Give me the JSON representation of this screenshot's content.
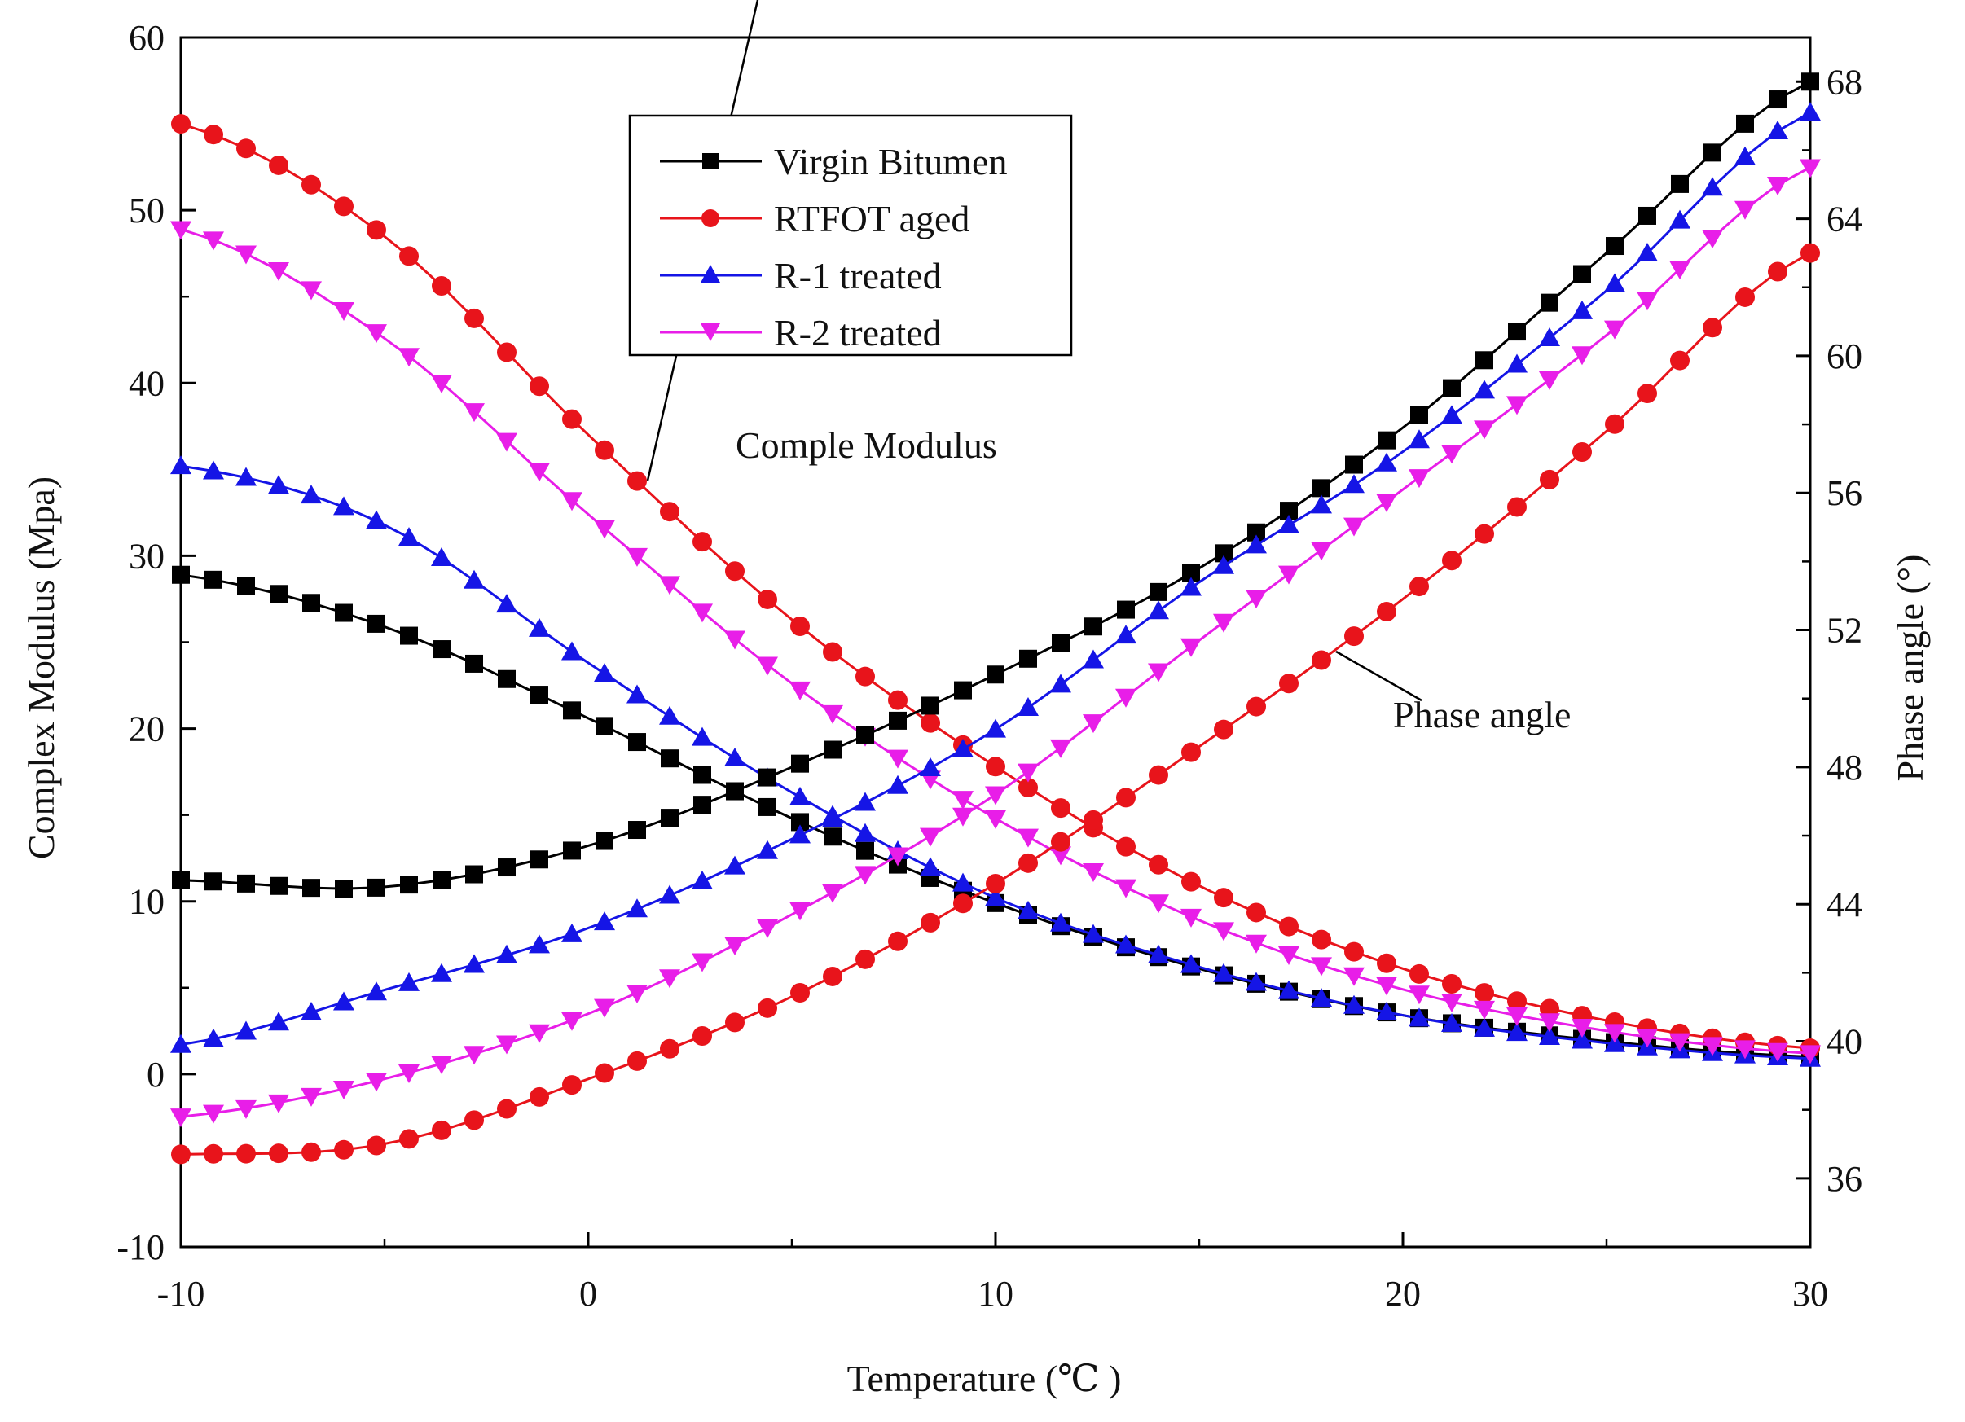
{
  "chart_data": {
    "type": "line",
    "xlabel": "Temperature (℃ )",
    "ylabel": "Complex Modulus (Mpa)",
    "y2label": "Phase angle (°)",
    "xlim": [
      -10,
      30
    ],
    "ylim": [
      -10,
      60
    ],
    "y2lim": [
      34,
      69.29
    ],
    "x_ticks": [
      "-10",
      "0",
      "10",
      "20",
      "30"
    ],
    "y_ticks": [
      "-10",
      "0",
      "10",
      "20",
      "30",
      "40",
      "50",
      "60"
    ],
    "y2_ticks": [
      "36",
      "40",
      "44",
      "48",
      "52",
      "56",
      "60",
      "64",
      "68"
    ],
    "legend_position": "top-center",
    "legend": [
      "Virgin Bitumen",
      "RTFOT aged",
      "R-1 treated",
      "R-2 treated"
    ],
    "annotations": [
      "Comple Modulus",
      "Phase angle"
    ],
    "modulus_series": [
      {
        "name": "Virgin Bitumen",
        "color": "#000000",
        "marker": "square",
        "x": [
          -10,
          -5,
          0,
          5,
          10,
          15,
          20,
          25,
          30
        ],
        "y": [
          28.9,
          25.9,
          20.6,
          14.8,
          9.9,
          6.1,
          3.4,
          1.9,
          1.0
        ]
      },
      {
        "name": "RTFOT aged",
        "color": "#e8141b",
        "marker": "circle",
        "x": [
          -10,
          -5,
          0,
          5,
          10,
          15,
          20,
          25,
          30
        ],
        "y": [
          55.0,
          48.5,
          37.0,
          26.3,
          17.8,
          10.9,
          6.1,
          3.1,
          1.5
        ]
      },
      {
        "name": "R-1 treated",
        "color": "#1515e6",
        "marker": "triangle-up",
        "x": [
          -10,
          -5,
          0,
          5,
          10,
          15,
          20,
          25,
          30
        ],
        "y": [
          35.2,
          31.8,
          23.8,
          16.3,
          10.2,
          6.2,
          3.4,
          1.8,
          0.9
        ]
      },
      {
        "name": "R-2 treated",
        "color": "#e81ee8",
        "marker": "triangle-down",
        "x": [
          -10,
          -5,
          0,
          5,
          10,
          15,
          20,
          25,
          30
        ],
        "y": [
          48.9,
          42.6,
          32.4,
          22.6,
          14.8,
          8.9,
          4.9,
          2.5,
          1.2
        ]
      }
    ],
    "phase_series": [
      {
        "name": "Virgin Bitumen",
        "color": "#000000",
        "marker": "square",
        "x": [
          -10,
          -5,
          0,
          5,
          10,
          15,
          20,
          25,
          30
        ],
        "y": [
          44.7,
          44.5,
          45.7,
          48.0,
          50.7,
          53.8,
          57.9,
          63.0,
          68.0
        ]
      },
      {
        "name": "RTFOT aged",
        "color": "#e8141b",
        "marker": "circle",
        "x": [
          -10,
          -5,
          0,
          5,
          10,
          15,
          20,
          25,
          30
        ],
        "y": [
          36.7,
          37.0,
          38.9,
          41.3,
          44.6,
          48.6,
          52.9,
          57.8,
          63.0
        ]
      },
      {
        "name": "R-1 treated",
        "color": "#1515e6",
        "marker": "triangle-up",
        "x": [
          -10,
          -5,
          0,
          5,
          10,
          15,
          20,
          25,
          30
        ],
        "y": [
          39.9,
          41.5,
          43.3,
          45.9,
          49.1,
          53.4,
          57.2,
          61.9,
          67.1
        ]
      },
      {
        "name": "R-2 treated",
        "color": "#e81ee8",
        "marker": "triangle-down",
        "x": [
          -10,
          -5,
          0,
          5,
          10,
          15,
          20,
          25,
          30
        ],
        "y": [
          37.8,
          38.9,
          40.8,
          43.7,
          47.2,
          51.7,
          56.1,
          60.6,
          65.5
        ]
      }
    ]
  }
}
